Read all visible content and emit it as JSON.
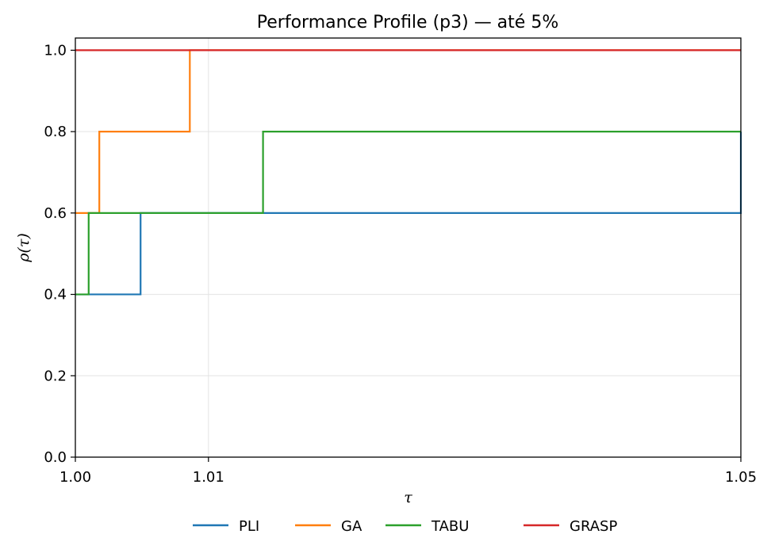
{
  "chart_data": {
    "type": "line",
    "step": true,
    "title": "Performance Profile (p3) — até 5%",
    "xlabel": "τ",
    "ylabel": "ρ(τ)",
    "xlim": [
      1.0,
      1.05
    ],
    "ylim": [
      0.0,
      1.03
    ],
    "xticks": [
      {
        "value": 1.0,
        "label": "1.00"
      },
      {
        "value": 1.01,
        "label": "1.01"
      },
      {
        "value": 1.05,
        "label": "1.05"
      }
    ],
    "yticks": [
      {
        "value": 0.0,
        "label": "0.0"
      },
      {
        "value": 0.2,
        "label": "0.2"
      },
      {
        "value": 0.4,
        "label": "0.4"
      },
      {
        "value": 0.6,
        "label": "0.6"
      },
      {
        "value": 0.8,
        "label": "0.8"
      },
      {
        "value": 1.0,
        "label": "1.0"
      }
    ],
    "grid": true,
    "legend_position": "bottom-center",
    "series": [
      {
        "name": "PLI",
        "color": "#1f77b4",
        "x": [
          1.0,
          1.0048,
          1.0049,
          1.049,
          1.05
        ],
        "y": [
          0.4,
          0.4,
          0.6,
          0.6,
          0.8
        ]
      },
      {
        "name": "GA",
        "color": "#ff7f0e",
        "x": [
          1.0,
          1.0018,
          1.0086,
          1.05
        ],
        "y": [
          0.6,
          0.8,
          1.0,
          1.0
        ]
      },
      {
        "name": "TABU",
        "color": "#2ca02c",
        "x": [
          1.0,
          1.001,
          1.0141,
          1.05
        ],
        "y": [
          0.4,
          0.6,
          0.8,
          0.8
        ]
      },
      {
        "name": "GRASP",
        "color": "#d62728",
        "x": [
          1.0,
          1.05
        ],
        "y": [
          1.0,
          1.0
        ]
      }
    ]
  }
}
